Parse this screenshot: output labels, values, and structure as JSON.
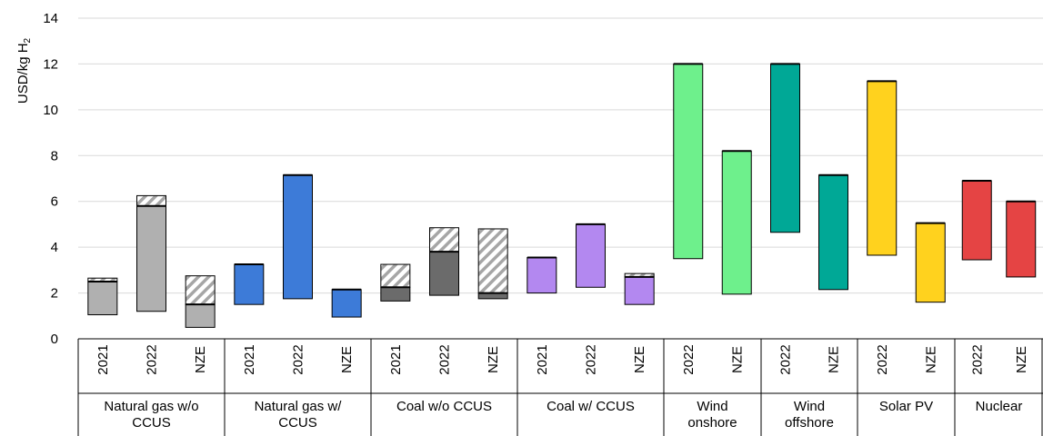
{
  "chart_data": {
    "type": "bar",
    "subtype": "floating-range",
    "ylabel": "USD/kg H",
    "ylabel_subscript": "2",
    "ylim": [
      0,
      14
    ],
    "yticks": [
      0,
      2,
      4,
      6,
      8,
      10,
      12,
      14
    ],
    "grid": "horizontal",
    "groups": [
      {
        "label": [
          "Natural gas w/o",
          "CCUS"
        ],
        "color": "#b0b0b0",
        "items": [
          {
            "label": "2021",
            "low": 1.05,
            "high": 2.5,
            "hatch_to": 2.65
          },
          {
            "label": "2022",
            "low": 1.2,
            "high": 5.8,
            "hatch_to": 6.25
          },
          {
            "label": "NZE",
            "low": 0.5,
            "high": 1.5,
            "hatch_to": 2.75
          }
        ]
      },
      {
        "label": [
          "Natural gas w/",
          "CCUS"
        ],
        "color": "#3d7bd8",
        "items": [
          {
            "label": "2021",
            "low": 1.5,
            "high": 3.25
          },
          {
            "label": "2022",
            "low": 1.75,
            "high": 7.15
          },
          {
            "label": "NZE",
            "low": 0.95,
            "high": 2.15
          }
        ]
      },
      {
        "label": [
          "Coal w/o CCUS"
        ],
        "color": "#6b6b6b",
        "items": [
          {
            "label": "2021",
            "low": 1.65,
            "high": 2.25,
            "hatch_to": 3.25
          },
          {
            "label": "2022",
            "low": 1.9,
            "high": 3.8,
            "hatch_to": 4.85
          },
          {
            "label": "NZE",
            "low": 1.75,
            "high": 2.0,
            "hatch_to": 4.8
          }
        ]
      },
      {
        "label": [
          "Coal w/ CCUS"
        ],
        "color": "#b388f0",
        "items": [
          {
            "label": "2021",
            "low": 2.0,
            "high": 3.55
          },
          {
            "label": "2022",
            "low": 2.25,
            "high": 5.0
          },
          {
            "label": "NZE",
            "low": 1.5,
            "high": 2.7,
            "hatch_to": 2.85
          }
        ]
      },
      {
        "label": [
          "Wind",
          "onshore"
        ],
        "color": "#6ef08c",
        "items": [
          {
            "label": "2022",
            "low": 3.5,
            "high": 12.0
          },
          {
            "label": "NZE",
            "low": 1.95,
            "high": 8.2
          }
        ]
      },
      {
        "label": [
          "Wind",
          "offshore"
        ],
        "color": "#00a896",
        "items": [
          {
            "label": "2022",
            "low": 4.65,
            "high": 12.0
          },
          {
            "label": "NZE",
            "low": 2.15,
            "high": 7.15
          }
        ]
      },
      {
        "label": [
          "Solar PV"
        ],
        "color": "#ffd21e",
        "items": [
          {
            "label": "2022",
            "low": 3.65,
            "high": 11.25
          },
          {
            "label": "NZE",
            "low": 1.6,
            "high": 5.05
          }
        ]
      },
      {
        "label": [
          "Nuclear"
        ],
        "color": "#e54444",
        "items": [
          {
            "label": "2022",
            "low": 3.45,
            "high": 6.9
          },
          {
            "label": "NZE",
            "low": 2.7,
            "high": 6.0
          }
        ]
      }
    ]
  }
}
